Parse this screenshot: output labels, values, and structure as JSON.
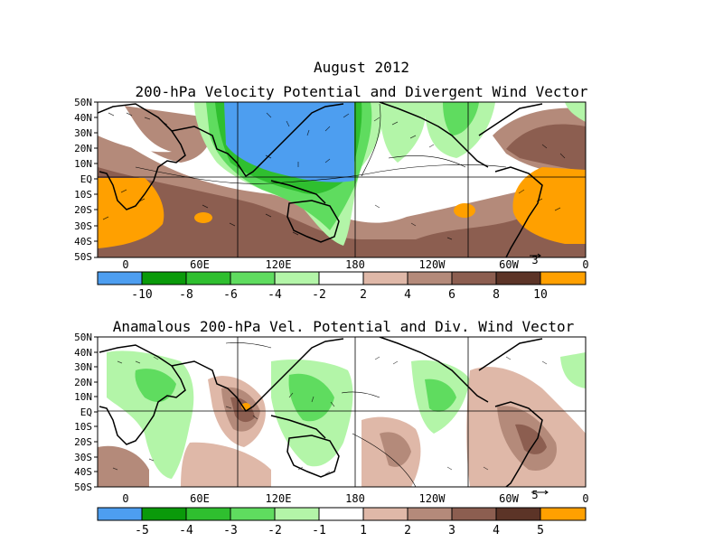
{
  "main_title": "August 2012",
  "panel1": {
    "title": "200-hPa Velocity Potential and Divergent Wind Vector",
    "lat_labels": [
      "50N",
      "40N",
      "30N",
      "20N",
      "10N",
      "EQ",
      "10S",
      "20S",
      "30S",
      "40S",
      "50S"
    ],
    "lon_labels": [
      "0",
      "60E",
      "120E",
      "180",
      "120W",
      "60W",
      "0"
    ],
    "vector_ref": "3",
    "colorbar": {
      "labels": [
        "-10",
        "-8",
        "-6",
        "-4",
        "-2",
        "2",
        "4",
        "6",
        "8",
        "10"
      ],
      "colors": [
        "#4d9ef0",
        "#0a9a0a",
        "#2fbf2f",
        "#5fdc5f",
        "#b3f5a8",
        "#ffffff",
        "#dfb8a8",
        "#b48a7a",
        "#8c5e50",
        "#5c3427",
        "#ffa000"
      ]
    }
  },
  "panel2": {
    "title": "Anamalous 200-hPa Vel. Potential and Div. Wind Vector",
    "lat_labels": [
      "50N",
      "40N",
      "30N",
      "20N",
      "10N",
      "EQ",
      "10S",
      "20S",
      "30S",
      "40S",
      "50S"
    ],
    "lon_labels": [
      "0",
      "60E",
      "120E",
      "180",
      "120W",
      "60W",
      "0"
    ],
    "vector_ref": "5",
    "colorbar": {
      "labels": [
        "-5",
        "-4",
        "-3",
        "-2",
        "-1",
        "1",
        "2",
        "3",
        "4",
        "5"
      ],
      "colors": [
        "#4d9ef0",
        "#0a9a0a",
        "#2fbf2f",
        "#5fdc5f",
        "#b3f5a8",
        "#ffffff",
        "#dfb8a8",
        "#b48a7a",
        "#8c5e50",
        "#5c3427",
        "#ffa000"
      ]
    }
  }
}
